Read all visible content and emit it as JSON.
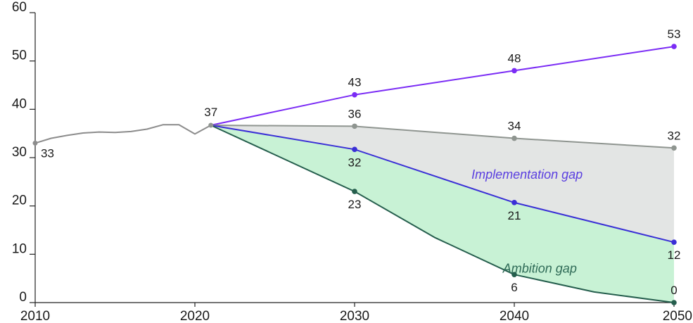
{
  "chart_data": {
    "type": "line",
    "title": "",
    "xlabel": "",
    "ylabel": "",
    "xlim": [
      2010,
      2050
    ],
    "ylim": [
      0,
      60
    ],
    "x_ticks": [
      2010,
      2020,
      2030,
      2040,
      2050
    ],
    "y_ticks": [
      0,
      10,
      20,
      30,
      40,
      50,
      60
    ],
    "grid": false,
    "legend": "none",
    "historical": {
      "color": "#8c8c8c",
      "x": [
        2010,
        2011,
        2012,
        2013,
        2014,
        2015,
        2016,
        2017,
        2018,
        2019,
        2020,
        2021
      ],
      "y": [
        33,
        34,
        34.6,
        35.1,
        35.3,
        35.2,
        35.4,
        35.9,
        36.8,
        36.8,
        34.9,
        36.7
      ],
      "label_first": "33"
    },
    "series": [
      {
        "color": "#7b2cf5",
        "x": [
          2021,
          2030,
          2040,
          2050
        ],
        "y": [
          36.7,
          43,
          48,
          53
        ],
        "labels": [
          "",
          "43",
          "48",
          "53"
        ],
        "label_side": [
          "",
          "above",
          "above",
          "above"
        ]
      },
      {
        "color": "#8f9590",
        "x": [
          2021,
          2030,
          2040,
          2050
        ],
        "y": [
          36.7,
          36.5,
          34,
          32
        ],
        "labels": [
          "37",
          "36",
          "34",
          "32"
        ],
        "label_side": [
          "above",
          "above",
          "above",
          "above"
        ]
      },
      {
        "color": "#3a2fd6",
        "x": [
          2021,
          2030,
          2040,
          2050
        ],
        "y": [
          36.7,
          31.7,
          20.7,
          12.5
        ],
        "labels": [
          "",
          "32",
          "21",
          "12"
        ],
        "label_side": [
          "",
          "below",
          "below",
          "below"
        ]
      },
      {
        "color": "#255e4d",
        "x": [
          2021,
          2030,
          2035,
          2040,
          2045,
          2050
        ],
        "y": [
          36.7,
          23,
          13.5,
          5.8,
          2.2,
          0
        ],
        "labels": [
          "",
          "23",
          "",
          "6",
          "",
          "0"
        ],
        "label_side": [
          "",
          "below",
          "",
          "below",
          "",
          "above"
        ]
      }
    ],
    "areas": [
      {
        "between": [
          1,
          2
        ],
        "color": "#e3e5e4"
      },
      {
        "between": [
          2,
          3
        ],
        "color": "#c8f2d5"
      }
    ],
    "annotations": [
      {
        "text": "Implementation gap",
        "x": 2040.8,
        "y": 25.6,
        "color": "#5a3fe0"
      },
      {
        "text": "Ambition gap",
        "x": 2041.6,
        "y": 6.2,
        "color": "#2f6b57"
      }
    ]
  }
}
